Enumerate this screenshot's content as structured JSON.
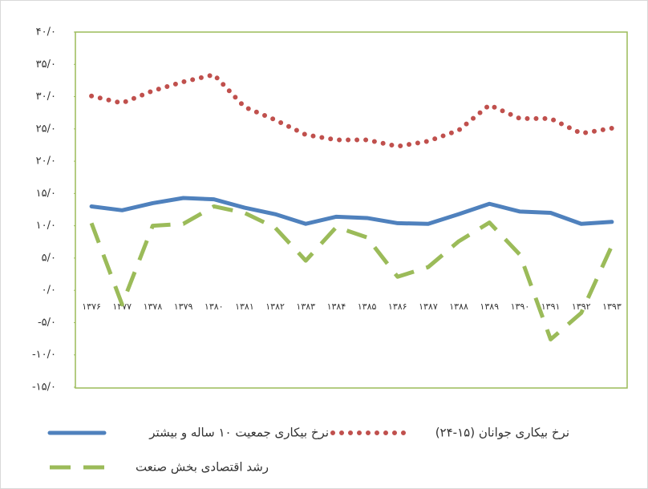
{
  "chart_data": {
    "type": "line",
    "categories": [
      "۱۳۷۶",
      "۱۳۷۷",
      "۱۳۷۸",
      "۱۳۷۹",
      "۱۳۸۰",
      "۱۳۸۱",
      "۱۳۸۲",
      "۱۳۸۳",
      "۱۳۸۴",
      "۱۳۸۵",
      "۱۳۸۶",
      "۱۳۸۷",
      "۱۳۸۸",
      "۱۳۸۹",
      "۱۳۹۰",
      "۱۳۹۱",
      "۱۳۹۲",
      "۱۳۹۳"
    ],
    "series": [
      {
        "name": "نرخ بیکاری جمعیت ۱۰ ساله و بیشتر",
        "color": "#4f81bd",
        "style": "solid",
        "values": [
          13.0,
          12.4,
          13.5,
          14.3,
          14.1,
          12.8,
          11.8,
          10.3,
          11.4,
          11.2,
          10.4,
          10.3,
          11.8,
          13.4,
          12.2,
          12.0,
          10.3,
          10.6
        ]
      },
      {
        "name": "نرخ بیکاری جوانان (۱۵-۲۴)",
        "color": "#c0504d",
        "style": "dotted",
        "values": [
          30.1,
          29.0,
          30.9,
          32.3,
          33.4,
          28.4,
          26.4,
          24.1,
          23.3,
          23.3,
          22.3,
          23.1,
          24.8,
          28.7,
          26.6,
          26.6,
          24.3,
          25.1
        ]
      },
      {
        "name": "رشد اقتصادی بخش صنعت",
        "color": "#9bbb59",
        "style": "dashed",
        "values": [
          10.4,
          -2.2,
          10.0,
          10.3,
          13.0,
          12.0,
          9.7,
          4.6,
          9.8,
          8.2,
          2.1,
          3.6,
          7.6,
          10.5,
          5.5,
          -7.6,
          -3.5,
          6.9
        ]
      }
    ],
    "ylim": [
      -15,
      40
    ],
    "yticks": [
      {
        "value": 40,
        "label": "۴۰/۰"
      },
      {
        "value": 35,
        "label": "۳۵/۰"
      },
      {
        "value": 30,
        "label": "۳۰/۰"
      },
      {
        "value": 25,
        "label": "۲۵/۰"
      },
      {
        "value": 20,
        "label": "۲۰/۰"
      },
      {
        "value": 15,
        "label": "۱۵/۰"
      },
      {
        "value": 10,
        "label": "۱۰/۰"
      },
      {
        "value": 5,
        "label": "۵/۰"
      },
      {
        "value": 0,
        "label": "۰/۰"
      },
      {
        "value": -5,
        "label": "-۵/۰"
      },
      {
        "value": -10,
        "label": "-۱۰/۰"
      },
      {
        "value": -15,
        "label": "-۱۵/۰"
      }
    ],
    "grid": false
  }
}
